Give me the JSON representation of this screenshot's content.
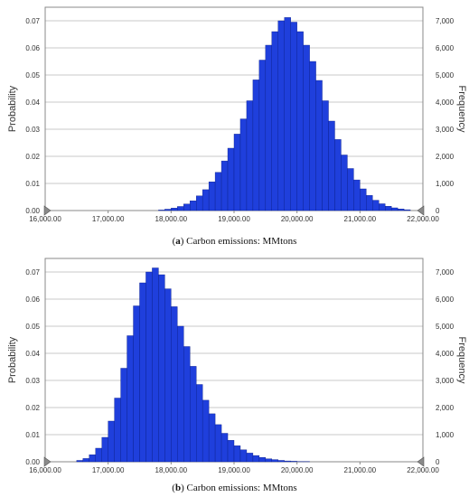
{
  "captions": [
    {
      "tag": "a",
      "text": "Carbon emissions: MMtons"
    },
    {
      "tag": "b",
      "text": "Carbon emissions: MMtons"
    }
  ],
  "colors": {
    "bar": "#1f3fdc",
    "bar_edge": "#0a1e8a",
    "grid": "#c8c8c8",
    "axis": "#888888",
    "text": "#333333"
  },
  "chart_data": [
    {
      "type": "bar",
      "title": "",
      "xlabel": "",
      "ylabel_left": "Probability",
      "ylabel_right": "Frequency",
      "xlim": [
        16000,
        22000
      ],
      "ylim_left": [
        0,
        0.075
      ],
      "ylim_right": [
        0,
        7500
      ],
      "x_ticks": [
        "16,000.00",
        "17,000.00",
        "18,000.00",
        "19,000.00",
        "20,000.00",
        "21,000.00",
        "22,000.00"
      ],
      "left_ticks": [
        "0.00",
        "0.01",
        "0.02",
        "0.03",
        "0.04",
        "0.05",
        "0.06",
        "0.07"
      ],
      "right_ticks": [
        "0",
        "1,000",
        "2,000",
        "3,000",
        "4,000",
        "5,000",
        "6,000",
        "7,000"
      ],
      "bin_width": 100,
      "bin_start": 17800,
      "values": [
        0.0002,
        0.0005,
        0.0009,
        0.0015,
        0.0024,
        0.0036,
        0.0054,
        0.0077,
        0.0106,
        0.0141,
        0.0183,
        0.023,
        0.0282,
        0.0338,
        0.0405,
        0.0482,
        0.0555,
        0.061,
        0.066,
        0.07,
        0.0712,
        0.0695,
        0.066,
        0.061,
        0.055,
        0.048,
        0.0405,
        0.033,
        0.0262,
        0.0205,
        0.0155,
        0.0113,
        0.008,
        0.0056,
        0.0038,
        0.0025,
        0.0016,
        0.001,
        0.0006,
        0.0003
      ]
    },
    {
      "type": "bar",
      "title": "",
      "xlabel": "",
      "ylabel_left": "Probability",
      "ylabel_right": "Frequency",
      "xlim": [
        16000,
        22000
      ],
      "ylim_left": [
        0,
        0.075
      ],
      "ylim_right": [
        0,
        7500
      ],
      "x_ticks": [
        "16,000.00",
        "17,000.00",
        "18,000.00",
        "19,000.00",
        "20,000.00",
        "21,000.00",
        "22,000.00"
      ],
      "left_ticks": [
        "0.00",
        "0.01",
        "0.02",
        "0.03",
        "0.04",
        "0.05",
        "0.06",
        "0.07"
      ],
      "right_ticks": [
        "0",
        "1,000",
        "2,000",
        "3,000",
        "4,000",
        "5,000",
        "6,000",
        "7,000"
      ],
      "bin_width": 100,
      "bin_start": 16500,
      "values": [
        0.0005,
        0.0012,
        0.0026,
        0.005,
        0.009,
        0.015,
        0.0235,
        0.0345,
        0.0465,
        0.0575,
        0.066,
        0.07,
        0.0715,
        0.069,
        0.0638,
        0.0572,
        0.05,
        0.0425,
        0.0352,
        0.0285,
        0.0227,
        0.0177,
        0.0137,
        0.0105,
        0.0079,
        0.0059,
        0.0044,
        0.0032,
        0.0023,
        0.0016,
        0.0011,
        0.0008,
        0.0005,
        0.0003,
        0.0002,
        0.0001,
        0.0001
      ]
    }
  ]
}
